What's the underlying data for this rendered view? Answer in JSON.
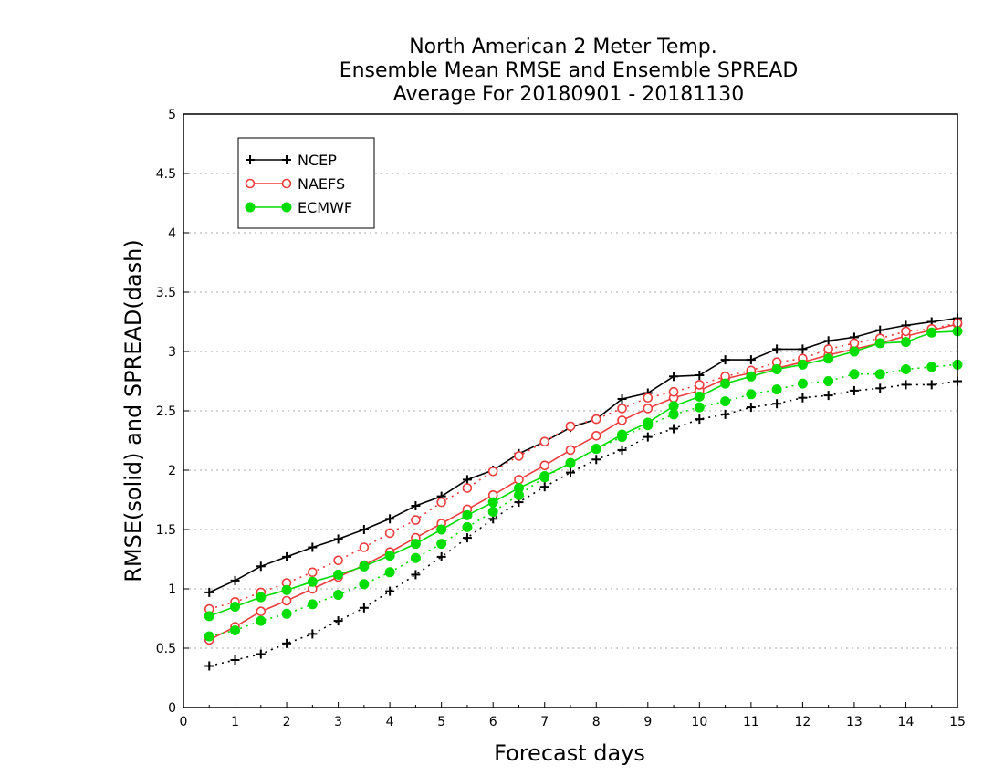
{
  "chart_data": {
    "type": "line",
    "title": [
      "North American 2 Meter Temp.",
      "Ensemble Mean RMSE and Ensemble SPREAD",
      "Average For 20180901 - 20181130"
    ],
    "xlabel": "Forecast days",
    "ylabel": "RMSE(solid) and SPREAD(dash)",
    "xlim": [
      0,
      15
    ],
    "ylim": [
      0,
      5
    ],
    "x_ticks": [
      "0",
      "1",
      "2",
      "3",
      "4",
      "5",
      "6",
      "7",
      "8",
      "9",
      "10",
      "11",
      "12",
      "13",
      "14",
      "15"
    ],
    "y_ticks": [
      "0",
      "0.5",
      "1",
      "1.5",
      "2",
      "2.5",
      "3",
      "3.5",
      "4",
      "4.5",
      "5"
    ],
    "grid": "horizontal dotted",
    "legend_position": "top-left",
    "x": [
      0.5,
      1,
      1.5,
      2,
      2.5,
      3,
      3.5,
      4,
      4.5,
      5,
      5.5,
      6,
      6.5,
      7,
      7.5,
      8,
      8.5,
      9,
      9.5,
      10,
      10.5,
      11,
      11.5,
      12,
      12.5,
      13,
      13.5,
      14,
      14.5,
      15
    ],
    "series": [
      {
        "name": "NCEP",
        "metric": "RMSE",
        "style": "solid",
        "marker": "plus",
        "color": "#000000",
        "values": [
          0.97,
          1.07,
          1.19,
          1.27,
          1.35,
          1.42,
          1.5,
          1.59,
          1.7,
          1.78,
          1.92,
          2.0,
          2.14,
          2.24,
          2.36,
          2.43,
          2.6,
          2.65,
          2.79,
          2.8,
          2.93,
          2.93,
          3.02,
          3.02,
          3.09,
          3.12,
          3.18,
          3.22,
          3.25,
          3.28
        ]
      },
      {
        "name": "NCEP",
        "metric": "SPREAD",
        "style": "dash",
        "marker": "plus",
        "color": "#000000",
        "values": [
          0.35,
          0.4,
          0.45,
          0.54,
          0.62,
          0.73,
          0.84,
          0.98,
          1.12,
          1.27,
          1.43,
          1.59,
          1.73,
          1.86,
          1.98,
          2.09,
          2.17,
          2.28,
          2.35,
          2.43,
          2.47,
          2.53,
          2.56,
          2.61,
          2.63,
          2.67,
          2.69,
          2.72,
          2.72,
          2.75
        ]
      },
      {
        "name": "NAEFS",
        "metric": "RMSE",
        "style": "solid",
        "marker": "open-circle",
        "color": "#ee3b3b",
        "values": [
          0.57,
          0.68,
          0.81,
          0.9,
          1.0,
          1.1,
          1.2,
          1.31,
          1.43,
          1.55,
          1.67,
          1.79,
          1.92,
          2.04,
          2.17,
          2.29,
          2.42,
          2.52,
          2.61,
          2.67,
          2.77,
          2.82,
          2.86,
          2.91,
          2.97,
          3.02,
          3.07,
          3.13,
          3.18,
          3.23
        ]
      },
      {
        "name": "NAEFS",
        "metric": "SPREAD",
        "style": "dash",
        "marker": "open-circle",
        "color": "#ee3b3b",
        "values": [
          0.83,
          0.89,
          0.97,
          1.05,
          1.14,
          1.24,
          1.35,
          1.47,
          1.58,
          1.73,
          1.85,
          1.99,
          2.12,
          2.24,
          2.37,
          2.43,
          2.52,
          2.61,
          2.66,
          2.72,
          2.79,
          2.84,
          2.91,
          2.94,
          3.02,
          3.07,
          3.11,
          3.17,
          3.19,
          3.24
        ]
      },
      {
        "name": "ECMWF",
        "metric": "RMSE",
        "style": "solid",
        "marker": "filled-circle",
        "color": "#00dd00",
        "values": [
          0.77,
          0.85,
          0.93,
          0.99,
          1.06,
          1.12,
          1.19,
          1.28,
          1.38,
          1.5,
          1.62,
          1.73,
          1.85,
          1.95,
          2.06,
          2.18,
          2.3,
          2.4,
          2.54,
          2.62,
          2.73,
          2.79,
          2.85,
          2.89,
          2.94,
          3.0,
          3.07,
          3.08,
          3.16,
          3.17
        ]
      },
      {
        "name": "ECMWF",
        "metric": "SPREAD",
        "style": "dash",
        "marker": "filled-circle",
        "color": "#00dd00",
        "values": [
          0.6,
          0.65,
          0.73,
          0.79,
          0.87,
          0.95,
          1.04,
          1.14,
          1.26,
          1.38,
          1.52,
          1.65,
          1.79,
          1.94,
          2.06,
          2.18,
          2.28,
          2.38,
          2.47,
          2.53,
          2.58,
          2.64,
          2.68,
          2.73,
          2.75,
          2.81,
          2.81,
          2.85,
          2.87,
          2.89
        ]
      }
    ],
    "legend": [
      {
        "label": "NCEP",
        "marker": "plus",
        "color": "#000000"
      },
      {
        "label": "NAEFS",
        "marker": "open-circle",
        "color": "#ee3b3b"
      },
      {
        "label": "ECMWF",
        "marker": "filled-circle",
        "color": "#00dd00"
      }
    ]
  }
}
